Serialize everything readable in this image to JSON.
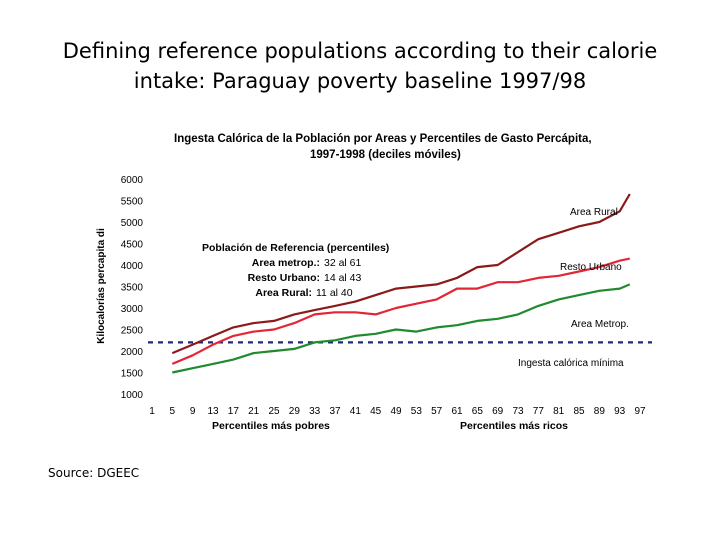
{
  "slide": {
    "title_line1": "Defining reference populations according to their calorie",
    "title_line2": "intake: Paraguay poverty baseline 1997/98",
    "source": "Source: DGEEC"
  },
  "colors": {
    "rural": "#8B1A1A",
    "urbano": "#E32636",
    "metrop": "#1F8A2E",
    "minimum": "#1F2A7A"
  },
  "chart_data": {
    "type": "line",
    "title_line1": "Ingesta Calórica de la Población por Areas y Percentiles de Gasto Percápita,",
    "title_line2": "1997-1998 (deciles móviles)",
    "ylabel": "Kilocalorías percapita di",
    "xlabel_left": "Percentiles más pobres",
    "xlabel_right": "Percentiles más ricos",
    "ylim": [
      1000,
      6000
    ],
    "yticks": [
      1000,
      1500,
      2000,
      2500,
      3000,
      3500,
      4000,
      4500,
      5000,
      5500,
      6000
    ],
    "xlim": [
      1,
      97
    ],
    "xticks": [
      1,
      5,
      9,
      13,
      17,
      21,
      25,
      29,
      33,
      37,
      41,
      45,
      49,
      53,
      57,
      61,
      65,
      69,
      73,
      77,
      81,
      85,
      89,
      93,
      97
    ],
    "x": [
      5,
      9,
      13,
      17,
      21,
      25,
      29,
      33,
      37,
      41,
      45,
      49,
      53,
      57,
      61,
      65,
      69,
      73,
      77,
      81,
      85,
      89,
      93,
      95
    ],
    "series": [
      {
        "name": "Area Rural",
        "key": "rural",
        "values": [
          1950,
          2150,
          2350,
          2550,
          2650,
          2700,
          2850,
          2950,
          3050,
          3150,
          3300,
          3450,
          3500,
          3550,
          3700,
          3950,
          4000,
          4300,
          4600,
          4750,
          4900,
          5000,
          5250,
          5650
        ]
      },
      {
        "name": "Resto Urbano",
        "key": "urbano",
        "values": [
          1700,
          1900,
          2150,
          2350,
          2450,
          2500,
          2650,
          2850,
          2900,
          2900,
          2850,
          3000,
          3100,
          3200,
          3450,
          3450,
          3600,
          3600,
          3700,
          3750,
          3850,
          3950,
          4100,
          4150
        ]
      },
      {
        "name": "Area Metrop.",
        "key": "metrop",
        "values": [
          1500,
          1600,
          1700,
          1800,
          1950,
          2000,
          2050,
          2200,
          2250,
          2350,
          2400,
          2500,
          2450,
          2550,
          2600,
          2700,
          2750,
          2850,
          3050,
          3200,
          3300,
          3400,
          3450,
          3550
        ]
      }
    ],
    "minimum": {
      "label": "Ingesta calórica mínima",
      "value": 2200
    },
    "reference_box": {
      "heading": "Población de Referencia (percentiles)",
      "rows": [
        {
          "area": "Area metrop.:",
          "range": "32 al 61"
        },
        {
          "area": "Resto Urbano:",
          "range": "14 al 43"
        },
        {
          "area": "Area Rural:",
          "range": "11 al  40"
        }
      ]
    }
  }
}
